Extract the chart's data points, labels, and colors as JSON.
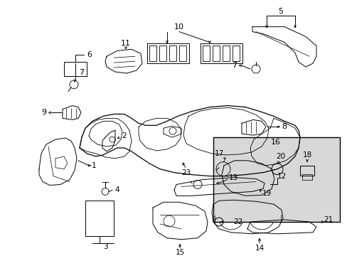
{
  "bg_color": "#ffffff",
  "line_color": "#000000",
  "lw": 0.7,
  "fig_width": 4.89,
  "fig_height": 3.6,
  "dpi": 100
}
